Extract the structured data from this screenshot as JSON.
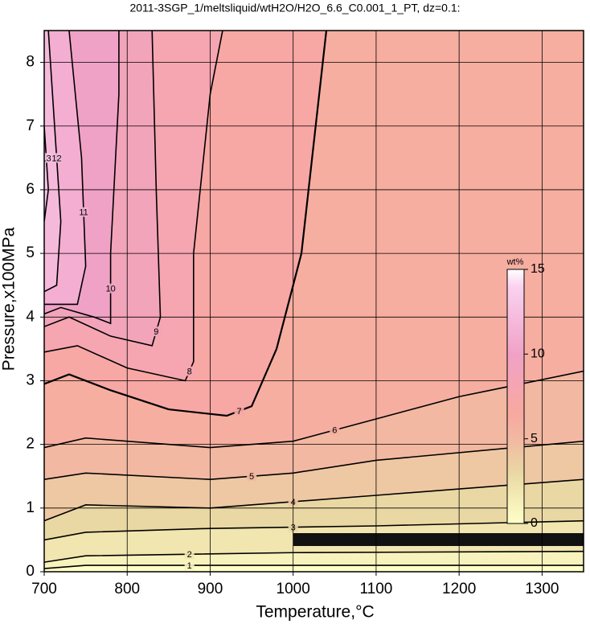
{
  "chart_data": {
    "type": "contour",
    "title": "2011-3SGP_1/meltsliquid/wtH2O/H2O_6.6_C0.001_1_PT, dz=0.1:",
    "xlabel": "Temperature,°C",
    "ylabel": "Pressure,x100MPa",
    "xlim": [
      700,
      1350
    ],
    "ylim": [
      0,
      8.5
    ],
    "xticks": [
      700,
      800,
      900,
      1000,
      1100,
      1200,
      1300
    ],
    "yticks": [
      0,
      1,
      2,
      3,
      4,
      5,
      6,
      7,
      8
    ],
    "grid": true,
    "colormap": [
      [
        0,
        "#ffffc8"
      ],
      [
        3,
        "#ead8a4"
      ],
      [
        5,
        "#f2b8a2"
      ],
      [
        6.6,
        "#f8a8a0"
      ],
      [
        10,
        "#f0a2c6"
      ],
      [
        14,
        "#fad2f0"
      ],
      [
        15,
        "#ffffff"
      ]
    ],
    "colorbar": {
      "label": "wt%",
      "lim": [
        0,
        15
      ],
      "ticks": [
        0,
        5,
        10,
        15
      ]
    },
    "contours": [
      {
        "level": 1,
        "x": [
          700,
          750,
          1000,
          1350
        ],
        "y": [
          0.05,
          0.1,
          0.1,
          0.1
        ]
      },
      {
        "level": 2,
        "x": [
          700,
          750,
          1000,
          1350
        ],
        "y": [
          0.15,
          0.25,
          0.3,
          0.32
        ]
      },
      {
        "level": 3,
        "x": [
          700,
          750,
          900,
          1100,
          1350
        ],
        "y": [
          0.5,
          0.62,
          0.68,
          0.72,
          0.8
        ]
      },
      {
        "level": 4,
        "x": [
          700,
          750,
          900,
          1100,
          1350
        ],
        "y": [
          0.8,
          1.05,
          1.0,
          1.2,
          1.45
        ]
      },
      {
        "level": 5,
        "x": [
          700,
          750,
          900,
          1000,
          1100,
          1350
        ],
        "y": [
          1.45,
          1.55,
          1.45,
          1.55,
          1.75,
          2.05
        ]
      },
      {
        "level": 6,
        "x": [
          700,
          750,
          900,
          1000,
          1100,
          1200,
          1350
        ],
        "y": [
          1.95,
          2.1,
          1.95,
          2.05,
          2.4,
          2.75,
          3.15
        ]
      },
      {
        "level": 7,
        "x": [
          700,
          730,
          780,
          850,
          920,
          950,
          980,
          1010,
          1040
        ],
        "y": [
          2.95,
          3.1,
          2.85,
          2.55,
          2.45,
          2.6,
          3.5,
          5,
          8.5
        ]
      },
      {
        "level": 8,
        "x": [
          700,
          740,
          800,
          870,
          880,
          880,
          900,
          915
        ],
        "y": [
          3.45,
          3.55,
          3.2,
          3.0,
          3.3,
          5,
          7.5,
          8.5
        ]
      },
      {
        "level": 9,
        "x": [
          700,
          730,
          780,
          830,
          840,
          835,
          830
        ],
        "y": [
          3.85,
          4.0,
          3.7,
          3.55,
          4,
          6,
          8.5
        ]
      },
      {
        "level": 10,
        "x": [
          700,
          720,
          760,
          780,
          780,
          790,
          790
        ],
        "y": [
          4.05,
          4.15,
          4.0,
          3.9,
          5,
          7.5,
          8.5
        ]
      },
      {
        "level": 11,
        "x": [
          700,
          740,
          750,
          745,
          730
        ],
        "y": [
          4.2,
          4.2,
          4.8,
          6.5,
          8.5
        ]
      },
      {
        "level": 12,
        "x": [
          700,
          715,
          720,
          710,
          705
        ],
        "y": [
          4.4,
          4.5,
          5.5,
          7.5,
          8.5
        ]
      },
      {
        "level": 13,
        "x": [
          700,
          705,
          700
        ],
        "y": [
          5.5,
          6,
          7
        ]
      }
    ]
  }
}
